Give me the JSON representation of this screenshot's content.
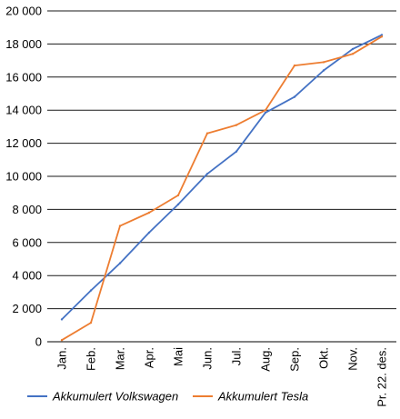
{
  "chart_data": {
    "type": "line",
    "categories": [
      "Jan.",
      "Feb.",
      "Mar.",
      "Apr.",
      "Mai",
      "Jun.",
      "Jul.",
      "Aug.",
      "Sep.",
      "Okt.",
      "Nov.",
      "Pr. 22. des."
    ],
    "yticks": [
      "0",
      "2 000",
      "4 000",
      "6 000",
      "8 000",
      "10 000",
      "12 000",
      "14 000",
      "16 000",
      "18 000",
      "20 000"
    ],
    "ylim": [
      0,
      20000
    ],
    "grid": true,
    "legend_position": "bottom",
    "series": [
      {
        "name": "Akkumulert Volkswagen",
        "color": "#4472C4",
        "values": [
          1350,
          3100,
          4750,
          6600,
          8300,
          10150,
          11500,
          13850,
          14800,
          16400,
          17700,
          18550
        ]
      },
      {
        "name": "Akkumulert Tesla",
        "color": "#ED7D31",
        "values": [
          100,
          1150,
          7000,
          7800,
          8850,
          12600,
          13100,
          14000,
          16700,
          16900,
          17400,
          18450
        ]
      }
    ]
  }
}
